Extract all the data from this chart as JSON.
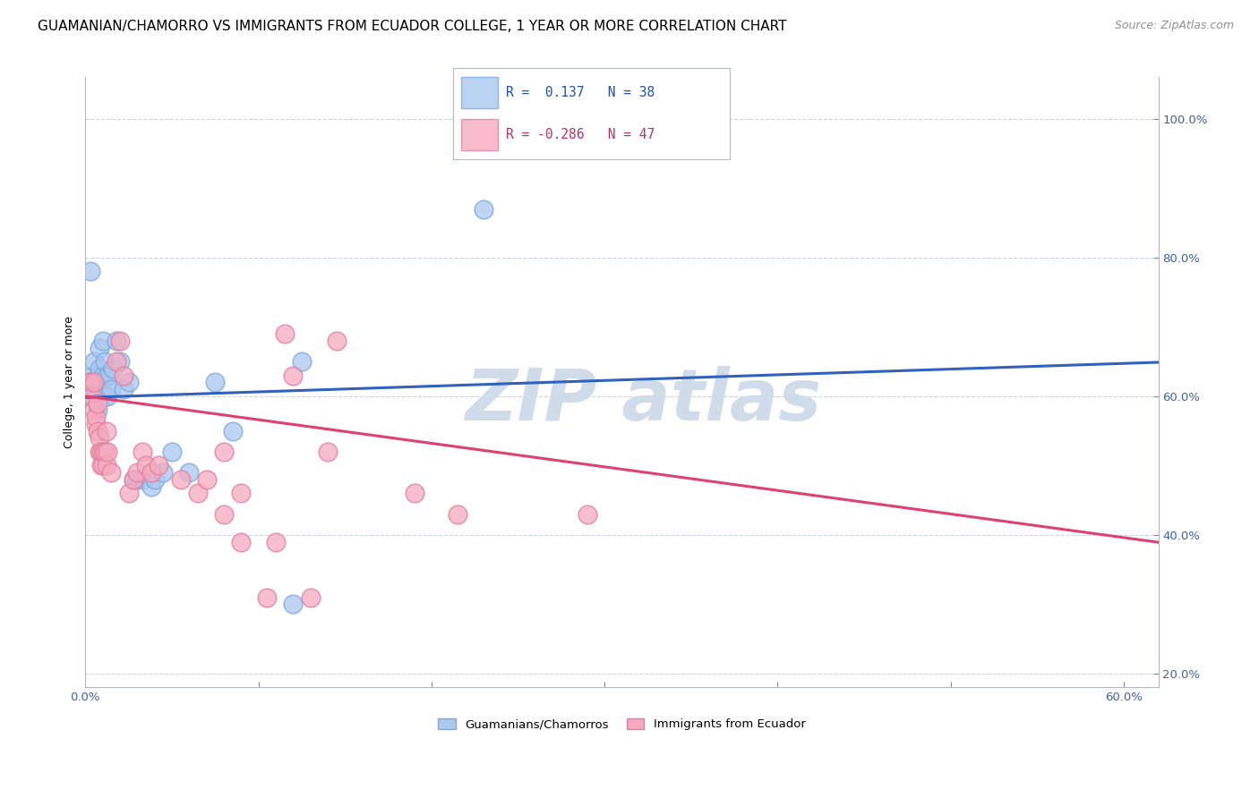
{
  "title": "GUAMANIAN/CHAMORRO VS IMMIGRANTS FROM ECUADOR COLLEGE, 1 YEAR OR MORE CORRELATION CHART",
  "source": "Source: ZipAtlas.com",
  "ylabel": "College, 1 year or more",
  "legend_blue_r": "0.137",
  "legend_blue_n": "38",
  "legend_pink_r": "-0.286",
  "legend_pink_n": "47",
  "blue_scatter": [
    [
      0.002,
      0.62
    ],
    [
      0.003,
      0.6
    ],
    [
      0.004,
      0.63
    ],
    [
      0.005,
      0.65
    ],
    [
      0.006,
      0.62
    ],
    [
      0.006,
      0.6
    ],
    [
      0.007,
      0.62
    ],
    [
      0.007,
      0.58
    ],
    [
      0.008,
      0.64
    ],
    [
      0.008,
      0.67
    ],
    [
      0.009,
      0.61
    ],
    [
      0.01,
      0.63
    ],
    [
      0.01,
      0.68
    ],
    [
      0.011,
      0.6
    ],
    [
      0.011,
      0.65
    ],
    [
      0.012,
      0.63
    ],
    [
      0.013,
      0.6
    ],
    [
      0.014,
      0.63
    ],
    [
      0.015,
      0.61
    ],
    [
      0.016,
      0.64
    ],
    [
      0.018,
      0.68
    ],
    [
      0.02,
      0.65
    ],
    [
      0.022,
      0.61
    ],
    [
      0.025,
      0.62
    ],
    [
      0.028,
      0.48
    ],
    [
      0.03,
      0.48
    ],
    [
      0.033,
      0.48
    ],
    [
      0.038,
      0.47
    ],
    [
      0.04,
      0.48
    ],
    [
      0.045,
      0.49
    ],
    [
      0.05,
      0.52
    ],
    [
      0.06,
      0.49
    ],
    [
      0.075,
      0.62
    ],
    [
      0.085,
      0.55
    ],
    [
      0.12,
      0.3
    ],
    [
      0.125,
      0.65
    ],
    [
      0.23,
      0.87
    ],
    [
      0.003,
      0.78
    ]
  ],
  "pink_scatter": [
    [
      0.002,
      0.62
    ],
    [
      0.003,
      0.62
    ],
    [
      0.004,
      0.6
    ],
    [
      0.005,
      0.58
    ],
    [
      0.005,
      0.62
    ],
    [
      0.006,
      0.56
    ],
    [
      0.006,
      0.57
    ],
    [
      0.007,
      0.55
    ],
    [
      0.007,
      0.59
    ],
    [
      0.008,
      0.52
    ],
    [
      0.008,
      0.54
    ],
    [
      0.009,
      0.52
    ],
    [
      0.009,
      0.5
    ],
    [
      0.01,
      0.5
    ],
    [
      0.01,
      0.52
    ],
    [
      0.011,
      0.52
    ],
    [
      0.012,
      0.55
    ],
    [
      0.012,
      0.5
    ],
    [
      0.013,
      0.52
    ],
    [
      0.015,
      0.49
    ],
    [
      0.018,
      0.65
    ],
    [
      0.02,
      0.68
    ],
    [
      0.022,
      0.63
    ],
    [
      0.025,
      0.46
    ],
    [
      0.028,
      0.48
    ],
    [
      0.03,
      0.49
    ],
    [
      0.033,
      0.52
    ],
    [
      0.035,
      0.5
    ],
    [
      0.038,
      0.49
    ],
    [
      0.042,
      0.5
    ],
    [
      0.055,
      0.48
    ],
    [
      0.065,
      0.46
    ],
    [
      0.07,
      0.48
    ],
    [
      0.08,
      0.52
    ],
    [
      0.09,
      0.46
    ],
    [
      0.105,
      0.31
    ],
    [
      0.115,
      0.69
    ],
    [
      0.13,
      0.31
    ],
    [
      0.14,
      0.52
    ],
    [
      0.145,
      0.68
    ],
    [
      0.08,
      0.43
    ],
    [
      0.09,
      0.39
    ],
    [
      0.11,
      0.39
    ],
    [
      0.12,
      0.63
    ],
    [
      0.19,
      0.46
    ],
    [
      0.215,
      0.43
    ],
    [
      0.29,
      0.43
    ]
  ],
  "blue_color": "#aac8f0",
  "pink_color": "#f5aac0",
  "blue_line_color": "#3060c0",
  "pink_line_color": "#e04070",
  "blue_edge_color": "#7aaade",
  "pink_edge_color": "#e080a0",
  "grid_color": "#c8d4e8",
  "watermark_color": "#d0dcea",
  "xlim": [
    0.0,
    0.62
  ],
  "ylim": [
    0.18,
    1.06
  ],
  "x_ticks": [
    0.0,
    0.1,
    0.2,
    0.3,
    0.4,
    0.5,
    0.6
  ],
  "y_ticks": [
    0.2,
    0.4,
    0.6,
    0.8,
    1.0
  ],
  "blue_intercept": 0.598,
  "blue_slope": 0.082,
  "pink_intercept": 0.6,
  "pink_slope": -0.34,
  "title_fontsize": 11,
  "source_fontsize": 9,
  "axis_label_fontsize": 9,
  "tick_label_fontsize": 9.5
}
